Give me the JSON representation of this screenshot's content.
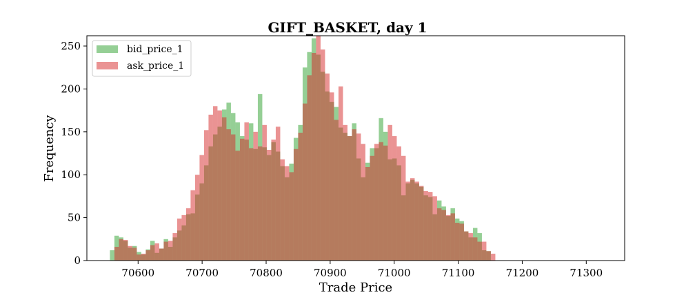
{
  "chart_data": {
    "type": "histogram",
    "title": "GIFT_BASKET, day 1",
    "xlabel": "Trade Price",
    "ylabel": "Frequency",
    "xlim": [
      70520,
      71360
    ],
    "ylim": [
      0,
      262
    ],
    "xticks": [
      70600,
      70700,
      70800,
      70900,
      71000,
      71100,
      71200,
      71300
    ],
    "yticks": [
      0,
      50,
      100,
      150,
      200,
      250
    ],
    "legend": "top-left",
    "grid": false,
    "series": [
      {
        "name": "bid_price_1",
        "color": "#2ca02c",
        "opacity": 0.5,
        "bin_start": 70556,
        "bin_width": 7,
        "values": [
          12,
          29,
          27,
          23,
          15,
          17,
          10,
          7,
          13,
          23,
          9,
          14,
          25,
          16,
          27,
          35,
          41,
          54,
          55,
          77,
          90,
          111,
          133,
          147,
          156,
          176,
          184,
          172,
          161,
          145,
          141,
          160,
          130,
          194,
          132,
          123,
          138,
          127,
          110,
          97,
          113,
          143,
          158,
          225,
          243,
          259,
          240,
          220,
          197,
          185,
          179,
          155,
          149,
          145,
          160,
          119,
          97,
          114,
          131,
          131,
          166,
          150,
          118,
          119,
          111,
          76,
          90,
          94,
          90,
          86,
          76,
          74,
          54,
          70,
          63,
          52,
          61,
          49,
          46,
          34,
          27,
          38,
          32,
          12,
          11
        ],
        "values_note": ""
      },
      {
        "name": "ask_price_1",
        "color": "#d62728",
        "opacity": 0.5,
        "bin_start": 70563,
        "bin_width": 7,
        "values": [
          16,
          25,
          24,
          17,
          15,
          7,
          8,
          12,
          18,
          20,
          14,
          22,
          23,
          32,
          49,
          53,
          61,
          82,
          100,
          123,
          152,
          170,
          180,
          175,
          167,
          153,
          147,
          128,
          142,
          161,
          131,
          150,
          133,
          158,
          129,
          141,
          156,
          118,
          110,
          103,
          130,
          149,
          183,
          216,
          242,
          266,
          246,
          218,
          196,
          164,
          203,
          158,
          145,
          153,
          148,
          136,
          109,
          122,
          136,
          138,
          134,
          158,
          145,
          133,
          122,
          92,
          96,
          92,
          87,
          81,
          80,
          75,
          61,
          59,
          53,
          55,
          44,
          43,
          34,
          32,
          27,
          22,
          22,
          11,
          8
        ],
        "values_note": ""
      }
    ]
  }
}
